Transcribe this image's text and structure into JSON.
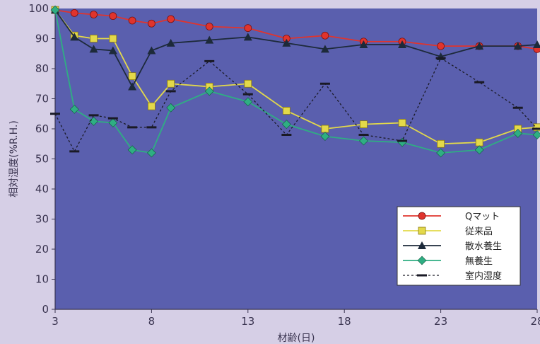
{
  "chart_data": {
    "type": "line",
    "title": "",
    "xlabel": "材齢(日)",
    "ylabel": "相対湿度(%R.H.)",
    "xlim": [
      3,
      28
    ],
    "ylim": [
      0,
      100
    ],
    "xticks": [
      3,
      8,
      13,
      18,
      23,
      28
    ],
    "yticks": [
      0,
      10,
      20,
      30,
      40,
      50,
      60,
      70,
      80,
      90,
      100
    ],
    "grid": false,
    "legend_position": "bottom-right",
    "background_color": "#5a5fae",
    "series": [
      {
        "name": "Qマット",
        "marker": "circle",
        "color": "#e0342d",
        "line_style": "solid",
        "x": [
          3,
          4,
          5,
          6,
          7,
          8,
          9,
          11,
          13,
          15,
          17,
          19,
          21,
          23,
          25,
          27,
          28
        ],
        "y": [
          99.5,
          98.5,
          98,
          97.5,
          96,
          95,
          96.5,
          94,
          93.5,
          90,
          91,
          89,
          89,
          87.5,
          87.5,
          87.5,
          86.5
        ]
      },
      {
        "name": "従来品",
        "marker": "square",
        "color": "#e3d94a",
        "line_style": "solid",
        "x": [
          3,
          4,
          5,
          6,
          7,
          8,
          9,
          11,
          13,
          15,
          17,
          19,
          21,
          23,
          25,
          27,
          28
        ],
        "y": [
          99.5,
          91,
          90,
          90,
          77.5,
          67.5,
          75,
          74,
          75,
          66,
          60,
          61.5,
          62,
          55,
          55.5,
          60,
          60.5
        ]
      },
      {
        "name": "散水養生",
        "marker": "triangle",
        "color": "#1d2a3a",
        "line_style": "solid",
        "x": [
          3,
          4,
          5,
          6,
          7,
          8,
          9,
          11,
          13,
          15,
          17,
          19,
          21,
          23,
          25,
          27,
          28
        ],
        "y": [
          99.5,
          90.5,
          86.5,
          86,
          74,
          86,
          88.5,
          89.5,
          90.5,
          88.5,
          86.5,
          88,
          88,
          84,
          87.5,
          87.5,
          88
        ]
      },
      {
        "name": "無養生",
        "marker": "diamond",
        "color": "#2fae83",
        "line_style": "solid",
        "x": [
          3,
          4,
          5,
          6,
          7,
          8,
          9,
          11,
          13,
          15,
          17,
          19,
          21,
          23,
          25,
          27,
          28
        ],
        "y": [
          99.5,
          66.5,
          62.5,
          62,
          53,
          52,
          67,
          72.5,
          69,
          61.5,
          57.5,
          56,
          55.5,
          52,
          53,
          58.5,
          58
        ]
      },
      {
        "name": "室内湿度",
        "marker": "dash",
        "color": "#1a1a26",
        "line_style": "dotted",
        "x": [
          3,
          4,
          5,
          6,
          7,
          8,
          9,
          11,
          13,
          15,
          17,
          19,
          21,
          23,
          25,
          27,
          28
        ],
        "y": [
          65,
          52.5,
          64.5,
          63.5,
          60.5,
          60.5,
          72.5,
          82.5,
          71.5,
          58,
          75,
          58,
          56,
          83.5,
          75.5,
          67,
          60
        ]
      }
    ]
  }
}
